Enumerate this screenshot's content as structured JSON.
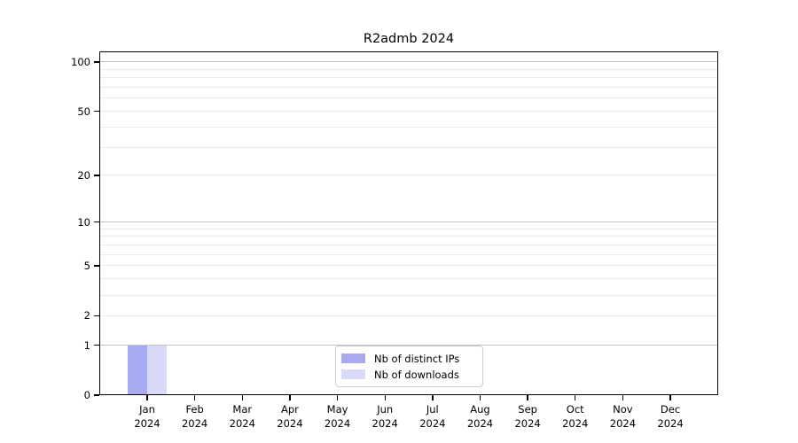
{
  "chart_data": {
    "type": "bar",
    "title": "R2admb 2024",
    "xlabel": "",
    "ylabel": "",
    "categories": [
      {
        "line1": "Jan",
        "line2": "2024"
      },
      {
        "line1": "Feb",
        "line2": "2024"
      },
      {
        "line1": "Mar",
        "line2": "2024"
      },
      {
        "line1": "Apr",
        "line2": "2024"
      },
      {
        "line1": "May",
        "line2": "2024"
      },
      {
        "line1": "Jun",
        "line2": "2024"
      },
      {
        "line1": "Jul",
        "line2": "2024"
      },
      {
        "line1": "Aug",
        "line2": "2024"
      },
      {
        "line1": "Sep",
        "line2": "2024"
      },
      {
        "line1": "Oct",
        "line2": "2024"
      },
      {
        "line1": "Nov",
        "line2": "2024"
      },
      {
        "line1": "Dec",
        "line2": "2024"
      }
    ],
    "series": [
      {
        "name": "Nb of distinct IPs",
        "color": "#a9a9f1",
        "values": [
          1,
          0,
          0,
          0,
          0,
          0,
          0,
          0,
          0,
          0,
          0,
          0
        ]
      },
      {
        "name": "Nb of downloads",
        "color": "#d9d9f8",
        "values": [
          1,
          0,
          0,
          0,
          0,
          0,
          0,
          0,
          0,
          0,
          0,
          0
        ]
      }
    ],
    "y_axis": {
      "scale": "log1p",
      "tick_values": [
        0,
        1,
        2,
        5,
        10,
        20,
        50,
        100
      ],
      "tick_labels": [
        "0",
        "1",
        "2",
        "5",
        "10",
        "20",
        "50",
        "100"
      ],
      "major_gridlines": [
        1,
        10,
        100
      ],
      "minor_gridlines": [
        2,
        3,
        4,
        5,
        6,
        7,
        8,
        9,
        20,
        30,
        40,
        50,
        60,
        70,
        80,
        90
      ],
      "ylim": [
        0,
        115
      ]
    },
    "legend": {
      "position": "bottom-center",
      "entries": [
        "Nb of distinct IPs",
        "Nb of downloads"
      ]
    },
    "colors": {
      "background": "#ffffff",
      "frame": "#000000",
      "major_grid": "#c3c3c3",
      "minor_grid": "#ebebeb",
      "text": "#000000"
    }
  }
}
